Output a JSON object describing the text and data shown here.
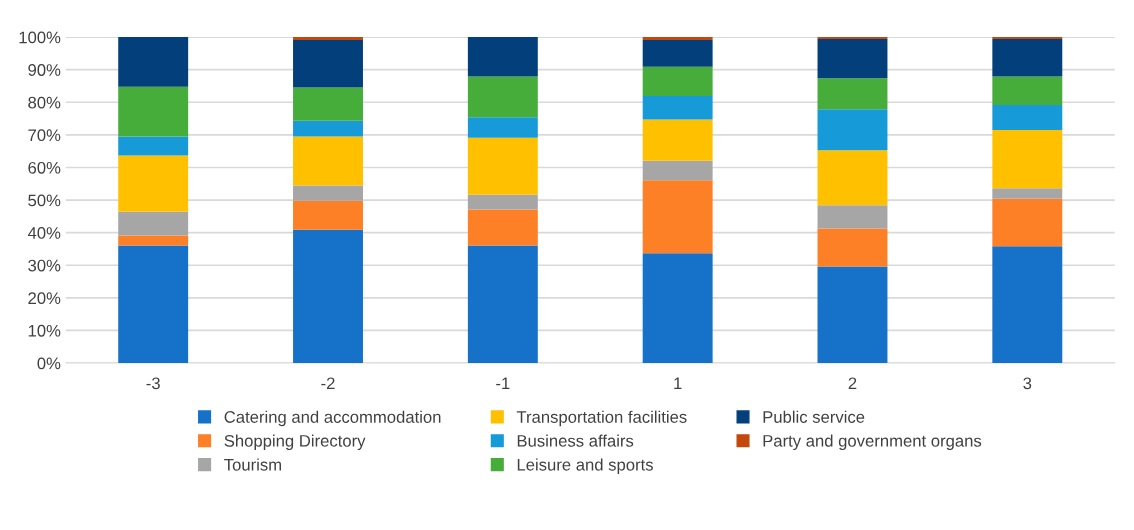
{
  "chart_data": {
    "type": "bar",
    "stacked": true,
    "categories": [
      "-3",
      "-2",
      "-1",
      "1",
      "2",
      "3"
    ],
    "series": [
      {
        "name": "Catering and accommodation",
        "color": "#1572c8",
        "values": [
          36.1,
          40.9,
          36.1,
          33.7,
          29.6,
          35.8
        ]
      },
      {
        "name": "Shopping Directory",
        "color": "#fd7f26",
        "values": [
          3.0,
          8.9,
          11.0,
          22.4,
          11.7,
          14.6
        ]
      },
      {
        "name": "Tourism",
        "color": "#a6a6a6",
        "values": [
          7.3,
          4.7,
          4.5,
          6.0,
          7.1,
          3.2
        ]
      },
      {
        "name": "Transportation facilities",
        "color": "#ffc000",
        "values": [
          17.3,
          15.0,
          17.5,
          12.6,
          16.9,
          17.9
        ]
      },
      {
        "name": "Business affairs",
        "color": "#169bd8",
        "values": [
          5.8,
          4.8,
          6.3,
          7.2,
          12.6,
          7.7
        ]
      },
      {
        "name": "Leisure and sports",
        "color": "#46ad3b",
        "values": [
          15.3,
          10.2,
          12.5,
          9.0,
          9.5,
          8.7
        ]
      },
      {
        "name": "Public service",
        "color": "#03407b",
        "values": [
          15.2,
          14.6,
          12.1,
          8.2,
          12.0,
          11.5
        ]
      },
      {
        "name": "Party and government organs",
        "color": "#c2480c",
        "values": [
          0,
          0.9,
          0,
          0.9,
          0.6,
          0.6
        ]
      }
    ],
    "ylim": [
      0,
      100
    ],
    "yticks": [
      {
        "value": 0,
        "label": "0%"
      },
      {
        "value": 10,
        "label": "10%"
      },
      {
        "value": 20,
        "label": "20%"
      },
      {
        "value": 30,
        "label": "30%"
      },
      {
        "value": 40,
        "label": "40%"
      },
      {
        "value": 50,
        "label": "50%"
      },
      {
        "value": 60,
        "label": "60%"
      },
      {
        "value": 70,
        "label": "70%"
      },
      {
        "value": 80,
        "label": "80%"
      },
      {
        "value": 90,
        "label": "90%"
      },
      {
        "value": 100,
        "label": "100%"
      }
    ],
    "grid": "y",
    "legend": "bottom"
  }
}
